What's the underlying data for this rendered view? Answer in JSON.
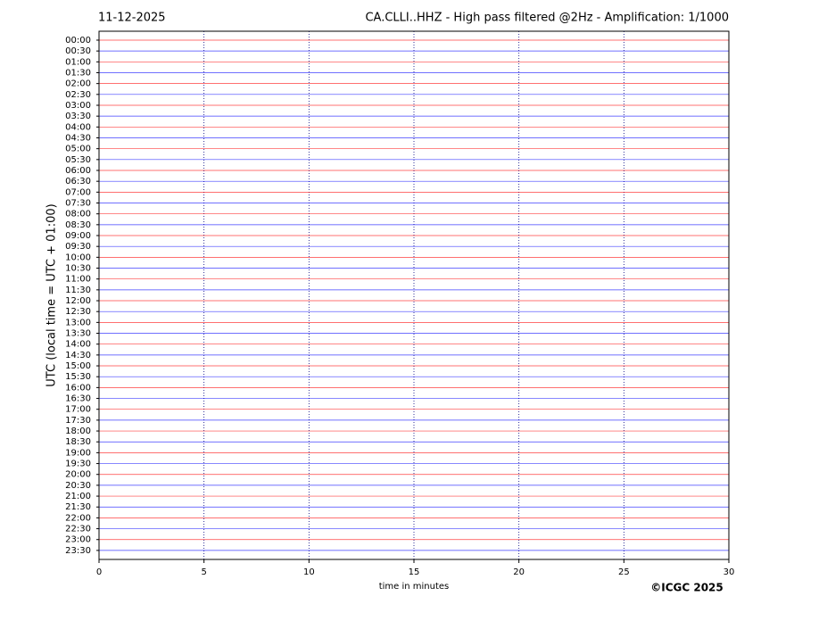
{
  "chart_data": {
    "type": "helicorder",
    "date": "11-12-2025",
    "title": "CA.CLLI..HHZ - High pass filtered @2Hz - Amplification: 1/1000",
    "ylabel": "UTC (local time = UTC + 01:00)",
    "xlabel": "time in minutes",
    "categories": [
      "00:00",
      "00:30",
      "01:00",
      "01:30",
      "02:00",
      "02:30",
      "03:00",
      "03:30",
      "04:00",
      "04:30",
      "05:00",
      "05:30",
      "06:00",
      "06:30",
      "07:00",
      "07:30",
      "08:00",
      "08:30",
      "09:00",
      "09:30",
      "10:00",
      "10:30",
      "11:00",
      "11:30",
      "12:00",
      "12:30",
      "13:00",
      "13:30",
      "14:00",
      "14:30",
      "15:00",
      "15:30",
      "16:00",
      "16:30",
      "17:00",
      "17:30",
      "18:00",
      "18:30",
      "19:00",
      "19:30",
      "20:00",
      "20:30",
      "21:00",
      "21:30",
      "22:00",
      "22:30",
      "23:00",
      "23:30"
    ],
    "xlim": [
      0,
      30
    ],
    "xticks": [
      0,
      5,
      10,
      15,
      20,
      25,
      30
    ],
    "grid": true,
    "trace_colors": [
      "#ff0000",
      "#0000ff"
    ]
  },
  "copyright": "©ICGC 2025"
}
